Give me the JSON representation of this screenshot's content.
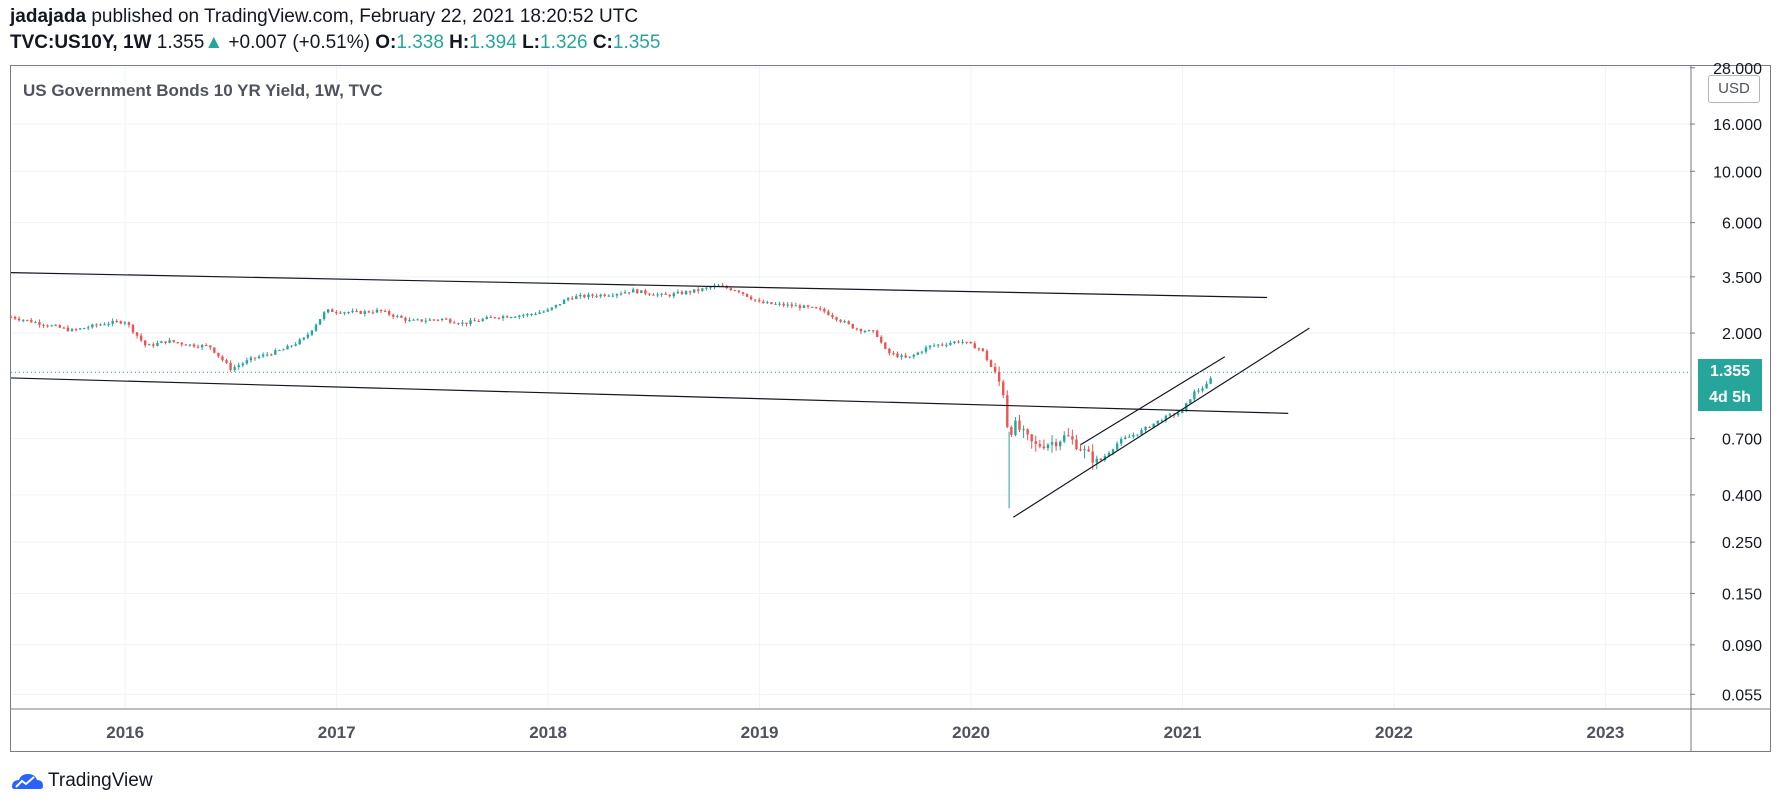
{
  "header": {
    "author": "jadajada",
    "published_text": "published on TradingView.com, February 22, 2021 18:20:52 UTC",
    "symbol": "TVC:US10Y, 1W",
    "last": "1.355",
    "change": "+0.007 (+0.51%)",
    "open_label": "O:",
    "open": "1.338",
    "high_label": "H:",
    "high": "1.394",
    "low_label": "L:",
    "low": "1.326",
    "close_label": "C:",
    "close": "1.355"
  },
  "footer": {
    "brand": "TradingView"
  },
  "colors": {
    "up": "#26a69a",
    "down": "#ef5350",
    "grid": "#f0f3fa",
    "axis": "#787b86"
  },
  "chart_data": {
    "type": "candlestick",
    "title": "US Government Bonds 10 YR Yield, 1W, TVC",
    "currency": "USD",
    "log_scale": true,
    "y_ticks": [
      "28.000",
      "16.000",
      "10.000",
      "6.000",
      "3.500",
      "2.000",
      "1.355",
      "0.700",
      "0.400",
      "0.250",
      "0.150",
      "0.090",
      "0.055"
    ],
    "y_tick_values": [
      28,
      16,
      10,
      6,
      3.5,
      2,
      1.355,
      0.7,
      0.4,
      0.25,
      0.15,
      0.09,
      0.055
    ],
    "x_ticks": [
      "2016",
      "2017",
      "2018",
      "2019",
      "2020",
      "2021",
      "2022",
      "2023"
    ],
    "xlim": [
      2015.46,
      2023.4
    ],
    "ylim": [
      0.048,
      28.5
    ],
    "last_price_label": "1.355",
    "countdown_label": "4d 5h",
    "series_path": [
      [
        2015.46,
        2.35
      ],
      [
        2015.6,
        2.2
      ],
      [
        2015.75,
        2.05
      ],
      [
        2015.9,
        2.2
      ],
      [
        2016.0,
        2.25
      ],
      [
        2016.1,
        1.75
      ],
      [
        2016.2,
        1.85
      ],
      [
        2016.3,
        1.78
      ],
      [
        2016.4,
        1.75
      ],
      [
        2016.5,
        1.4
      ],
      [
        2016.6,
        1.55
      ],
      [
        2016.75,
        1.7
      ],
      [
        2016.85,
        1.9
      ],
      [
        2016.95,
        2.5
      ],
      [
        2017.1,
        2.45
      ],
      [
        2017.2,
        2.5
      ],
      [
        2017.35,
        2.25
      ],
      [
        2017.5,
        2.3
      ],
      [
        2017.6,
        2.2
      ],
      [
        2017.75,
        2.35
      ],
      [
        2017.9,
        2.4
      ],
      [
        2018.0,
        2.5
      ],
      [
        2018.1,
        2.85
      ],
      [
        2018.3,
        2.95
      ],
      [
        2018.4,
        3.05
      ],
      [
        2018.55,
        2.9
      ],
      [
        2018.7,
        3.05
      ],
      [
        2018.8,
        3.2
      ],
      [
        2018.9,
        3.05
      ],
      [
        2019.0,
        2.7
      ],
      [
        2019.2,
        2.6
      ],
      [
        2019.3,
        2.5
      ],
      [
        2019.45,
        2.1
      ],
      [
        2019.55,
        2.0
      ],
      [
        2019.6,
        1.65
      ],
      [
        2019.7,
        1.55
      ],
      [
        2019.8,
        1.75
      ],
      [
        2019.95,
        1.85
      ],
      [
        2020.05,
        1.7
      ],
      [
        2020.15,
        1.15
      ],
      [
        2020.18,
        0.7
      ],
      [
        2020.2,
        0.82
      ],
      [
        2020.3,
        0.65
      ],
      [
        2020.4,
        0.68
      ],
      [
        2020.45,
        0.72
      ],
      [
        2020.5,
        0.66
      ],
      [
        2020.55,
        0.6
      ],
      [
        2020.6,
        0.55
      ],
      [
        2020.7,
        0.68
      ],
      [
        2020.8,
        0.75
      ],
      [
        2020.9,
        0.85
      ],
      [
        2021.0,
        0.92
      ],
      [
        2021.05,
        1.1
      ],
      [
        2021.12,
        1.2
      ],
      [
        2021.15,
        1.355
      ]
    ],
    "trendlines": [
      {
        "x1": 2015.46,
        "y1": 3.65,
        "x2": 2021.4,
        "y2": 2.85
      },
      {
        "x1": 2015.46,
        "y1": 1.28,
        "x2": 2021.5,
        "y2": 0.9
      },
      {
        "x1": 2020.2,
        "y1": 0.32,
        "x2": 2021.6,
        "y2": 2.1
      },
      {
        "x1": 2020.52,
        "y1": 0.66,
        "x2": 2021.2,
        "y2": 1.58
      }
    ]
  }
}
